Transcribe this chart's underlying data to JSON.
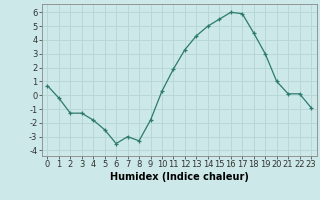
{
  "x": [
    0,
    1,
    2,
    3,
    4,
    5,
    6,
    7,
    8,
    9,
    10,
    11,
    12,
    13,
    14,
    15,
    16,
    17,
    18,
    19,
    20,
    21,
    22,
    23
  ],
  "y": [
    0.7,
    -0.2,
    -1.3,
    -1.3,
    -1.8,
    -2.5,
    -3.5,
    -3.0,
    -3.3,
    -1.8,
    0.3,
    1.9,
    3.3,
    4.3,
    5.0,
    5.5,
    6.0,
    5.9,
    4.5,
    3.0,
    1.0,
    0.1,
    0.1,
    -0.9
  ],
  "line_color": "#2d7a6e",
  "marker": "+",
  "marker_size": 3,
  "xlabel": "Humidex (Indice chaleur)",
  "xlim": [
    -0.5,
    23.5
  ],
  "ylim": [
    -4.4,
    6.6
  ],
  "yticks": [
    -4,
    -3,
    -2,
    -1,
    0,
    1,
    2,
    3,
    4,
    5,
    6
  ],
  "xticks": [
    0,
    1,
    2,
    3,
    4,
    5,
    6,
    7,
    8,
    9,
    10,
    11,
    12,
    13,
    14,
    15,
    16,
    17,
    18,
    19,
    20,
    21,
    22,
    23
  ],
  "xtick_labels": [
    "0",
    "1",
    "2",
    "3",
    "4",
    "5",
    "6",
    "7",
    "8",
    "9",
    "10",
    "11",
    "12",
    "13",
    "14",
    "15",
    "16",
    "17",
    "18",
    "19",
    "20",
    "21",
    "22",
    "23"
  ],
  "background_color": "#cce8e8",
  "grid_color": "#b8d8d8",
  "label_fontsize": 7,
  "tick_fontsize": 6
}
